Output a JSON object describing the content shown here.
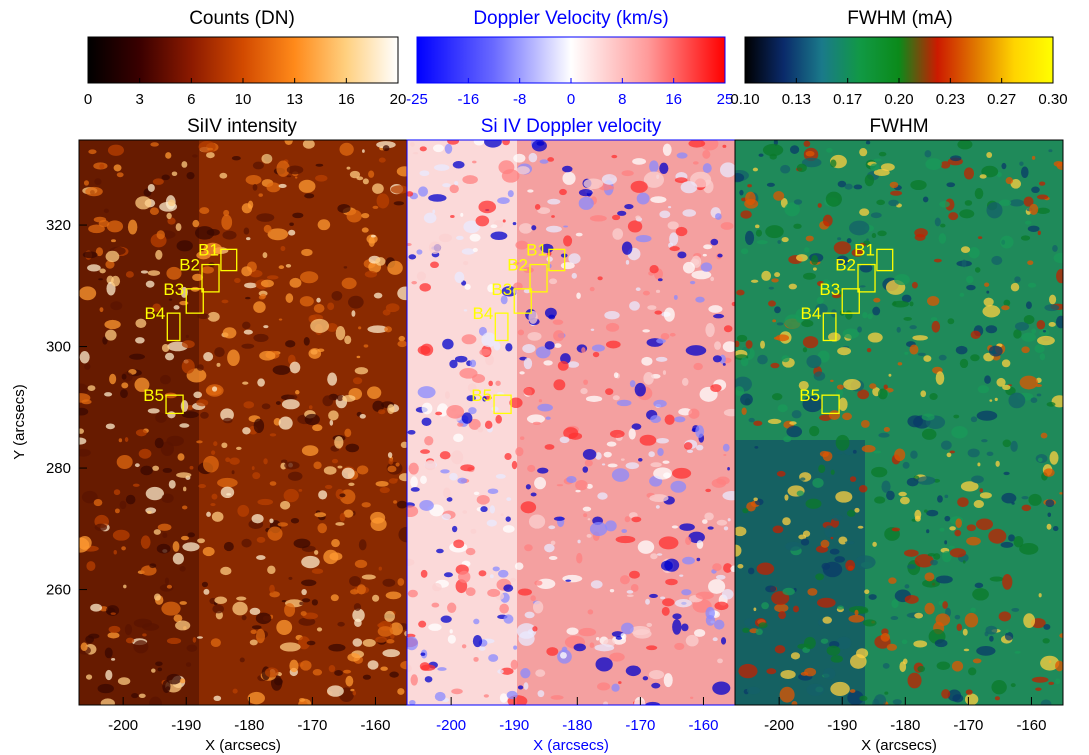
{
  "figure": {
    "y_axis_label": "Y (arcsecs)",
    "y_ticks": [
      260,
      280,
      300,
      320
    ],
    "y_range": [
      241,
      334
    ],
    "x_range": [
      -207,
      -155
    ],
    "x_ticks": [
      -200,
      -190,
      -180,
      -170,
      -160
    ]
  },
  "chart_data": [
    {
      "type": "heatmap",
      "title": "SiIV intensity",
      "xlabel": "X (arcsecs)",
      "ylabel": "Y (arcsecs)",
      "xlim": [
        -207,
        -155
      ],
      "ylim": [
        241,
        334
      ],
      "x_ticks": [
        -200,
        -190,
        -180,
        -170,
        -160
      ],
      "y_ticks": [
        260,
        280,
        300,
        320
      ],
      "colorbar": {
        "title": "Counts (DN)",
        "range": [
          0,
          20
        ],
        "tick_labels": [
          "0",
          "3",
          "6",
          "10",
          "13",
          "16",
          "20"
        ],
        "colors": [
          "#000000",
          "#3a0000",
          "#8c1a00",
          "#d24a00",
          "#ff8a1a",
          "#ffd080",
          "#ffffff"
        ]
      },
      "accent_color": "#000000",
      "boxes": [
        {
          "label": "B1",
          "x": [
            -184.5,
            -182.0
          ],
          "y": [
            312.5,
            316.0
          ]
        },
        {
          "label": "B2",
          "x": [
            -187.5,
            -184.8
          ],
          "y": [
            309.0,
            313.5
          ]
        },
        {
          "label": "B3",
          "x": [
            -190.0,
            -187.3
          ],
          "y": [
            305.5,
            309.5
          ]
        },
        {
          "label": "B4",
          "x": [
            -193.0,
            -191.0
          ],
          "y": [
            301.0,
            305.5
          ]
        },
        {
          "label": "B5",
          "x": [
            -193.2,
            -190.5
          ],
          "y": [
            289.0,
            292.0
          ]
        }
      ]
    },
    {
      "type": "heatmap",
      "title": "Si IV Doppler velocity",
      "xlabel": "X (arcsecs)",
      "xlim": [
        -207,
        -155
      ],
      "ylim": [
        241,
        334
      ],
      "x_ticks": [
        -200,
        -190,
        -180,
        -170,
        -160
      ],
      "colorbar": {
        "title": "Doppler Velocity (km/s)",
        "range": [
          -25,
          25
        ],
        "tick_labels": [
          "-25",
          "-16",
          "-8",
          "0",
          "8",
          "16",
          "25"
        ],
        "colors": [
          "#0000ff",
          "#6a6aff",
          "#ffffff",
          "#ff9a9a",
          "#ff0000"
        ]
      },
      "accent_color": "#0000ff",
      "boxes": [
        {
          "label": "B1",
          "x": [
            -184.5,
            -182.0
          ],
          "y": [
            312.5,
            316.0
          ]
        },
        {
          "label": "B2",
          "x": [
            -187.5,
            -184.8
          ],
          "y": [
            309.0,
            313.5
          ]
        },
        {
          "label": "B3",
          "x": [
            -190.0,
            -187.3
          ],
          "y": [
            305.5,
            309.5
          ]
        },
        {
          "label": "B4",
          "x": [
            -193.0,
            -191.0
          ],
          "y": [
            301.0,
            305.5
          ]
        },
        {
          "label": "B5",
          "x": [
            -193.2,
            -190.5
          ],
          "y": [
            289.0,
            292.0
          ]
        }
      ]
    },
    {
      "type": "heatmap",
      "title": "FWHM",
      "xlabel": "X (arcsecs)",
      "xlim": [
        -207,
        -155
      ],
      "ylim": [
        241,
        334
      ],
      "x_ticks": [
        -200,
        -190,
        -180,
        -170,
        -160
      ],
      "colorbar": {
        "title": "FWHM (mA)",
        "range": [
          0.1,
          0.3
        ],
        "tick_labels": [
          "0.10",
          "0.13",
          "0.17",
          "0.20",
          "0.23",
          "0.27",
          "0.30"
        ],
        "colors": [
          "#000000",
          "#0a2a6a",
          "#1a7a8a",
          "#119944",
          "#0b8a1a",
          "#cc1a00",
          "#e07800",
          "#ffd400",
          "#ffff00"
        ]
      },
      "accent_color": "#000000",
      "boxes": [
        {
          "label": "B1",
          "x": [
            -184.5,
            -182.0
          ],
          "y": [
            312.5,
            316.0
          ]
        },
        {
          "label": "B2",
          "x": [
            -187.5,
            -184.8
          ],
          "y": [
            309.0,
            313.5
          ]
        },
        {
          "label": "B3",
          "x": [
            -190.0,
            -187.3
          ],
          "y": [
            305.5,
            309.5
          ]
        },
        {
          "label": "B4",
          "x": [
            -193.0,
            -191.0
          ],
          "y": [
            301.0,
            305.5
          ]
        },
        {
          "label": "B5",
          "x": [
            -193.2,
            -190.5
          ],
          "y": [
            289.0,
            292.0
          ]
        }
      ]
    }
  ],
  "colors": {
    "box_color": "#ffff00",
    "intensity_base": "#8a2a00",
    "doppler_base": "#f4a0a0",
    "fwhm_base": "#1f8a5a"
  }
}
